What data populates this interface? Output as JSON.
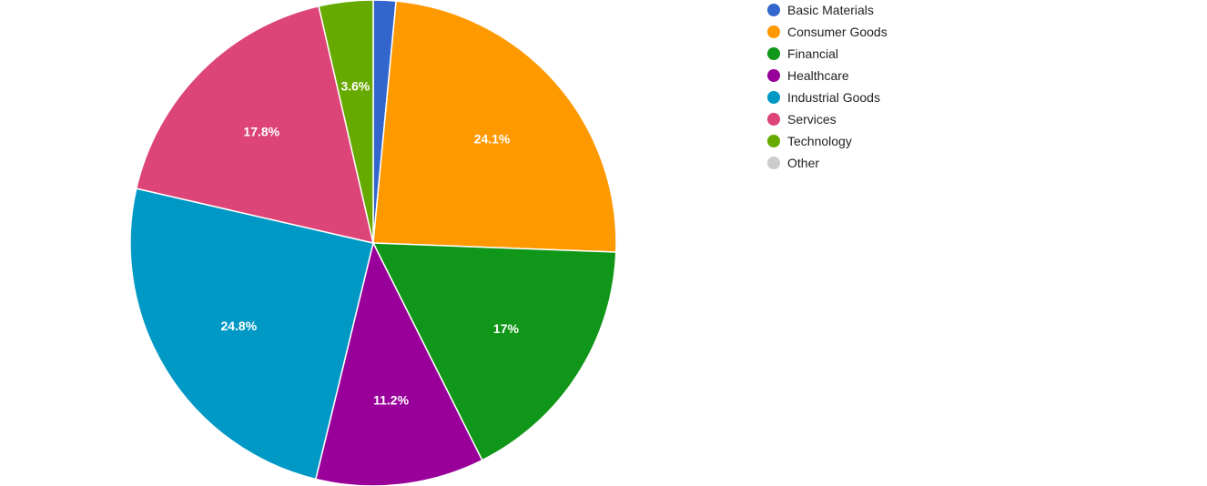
{
  "chart_data": {
    "type": "pie",
    "title": "",
    "legend_position": "right",
    "start_angle_deg": 0,
    "direction": "clockwise",
    "slices": [
      {
        "name": "Basic Materials",
        "value": 1.5,
        "label": "",
        "color": "#3366cc"
      },
      {
        "name": "Consumer Goods",
        "value": 24.1,
        "label": "24.1%",
        "color": "#ff9900"
      },
      {
        "name": "Financial",
        "value": 17.0,
        "label": "17%",
        "color": "#109618"
      },
      {
        "name": "Healthcare",
        "value": 11.2,
        "label": "11.2%",
        "color": "#990099"
      },
      {
        "name": "Industrial Goods",
        "value": 24.8,
        "label": "24.8%",
        "color": "#0099c6"
      },
      {
        "name": "Services",
        "value": 17.8,
        "label": "17.8%",
        "color": "#dd4477"
      },
      {
        "name": "Technology",
        "value": 3.6,
        "label": "3.6%",
        "color": "#66aa00"
      },
      {
        "name": "Other",
        "value": 0,
        "label": "",
        "color": "#cccccc"
      }
    ]
  }
}
